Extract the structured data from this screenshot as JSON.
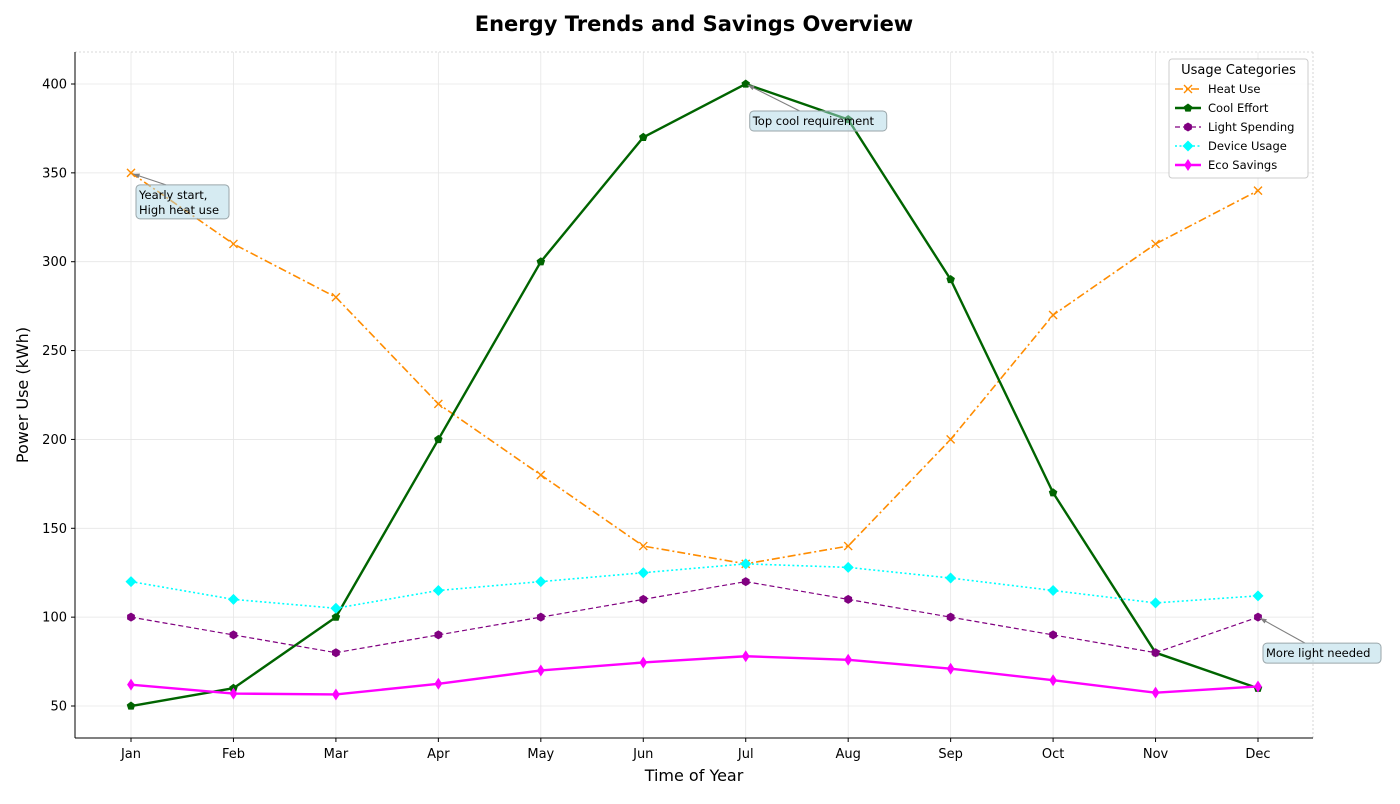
{
  "chart_data": {
    "type": "line",
    "title": "Energy Trends and Savings Overview",
    "xlabel": "Time of Year",
    "ylabel": "Power Use (kWh)",
    "categories": [
      "Jan",
      "Feb",
      "Mar",
      "Apr",
      "May",
      "Jun",
      "Jul",
      "Aug",
      "Sep",
      "Oct",
      "Nov",
      "Dec"
    ],
    "ylim": [
      32,
      418
    ],
    "yticks": [
      50,
      100,
      150,
      200,
      250,
      300,
      350,
      400
    ],
    "grid": true,
    "legend": {
      "title": "Usage Categories",
      "placement": "top-right"
    },
    "series": [
      {
        "name": "Heat Use",
        "color": "#ff8c00",
        "marker": "x",
        "line_style": "dashdot",
        "values": [
          350,
          310,
          280,
          220,
          180,
          140,
          130,
          140,
          200,
          270,
          310,
          340
        ]
      },
      {
        "name": "Cool Effort",
        "color": "#006400",
        "marker": "pentagon",
        "line_style": "solid",
        "values": [
          50,
          60,
          100,
          200,
          300,
          370,
          400,
          380,
          290,
          170,
          80,
          60
        ]
      },
      {
        "name": "Light Spending",
        "color": "#800080",
        "marker": "hexagon",
        "line_style": "dashed",
        "values": [
          100,
          90,
          80,
          90,
          100,
          110,
          120,
          110,
          100,
          90,
          80,
          100
        ]
      },
      {
        "name": "Device Usage",
        "color": "#00ffff",
        "marker": "diamond",
        "line_style": "dotted",
        "values": [
          120,
          110,
          105,
          115,
          120,
          125,
          130,
          128,
          122,
          115,
          108,
          112
        ]
      },
      {
        "name": "Eco Savings",
        "color": "#ff00ff",
        "marker": "thin-diamond",
        "line_style": "solid",
        "values": [
          62,
          57,
          56.5,
          62.5,
          70,
          74.5,
          78,
          76,
          71,
          64.5,
          57.5,
          61
        ]
      }
    ],
    "annotations": [
      {
        "text": "Yearly start,\nHigh heat use",
        "x": "Jan",
        "y": 350
      },
      {
        "text": "Top cool requirement",
        "x": "Jul",
        "y": 400
      },
      {
        "text": "More light needed",
        "x": "Dec",
        "y": 100
      }
    ]
  }
}
